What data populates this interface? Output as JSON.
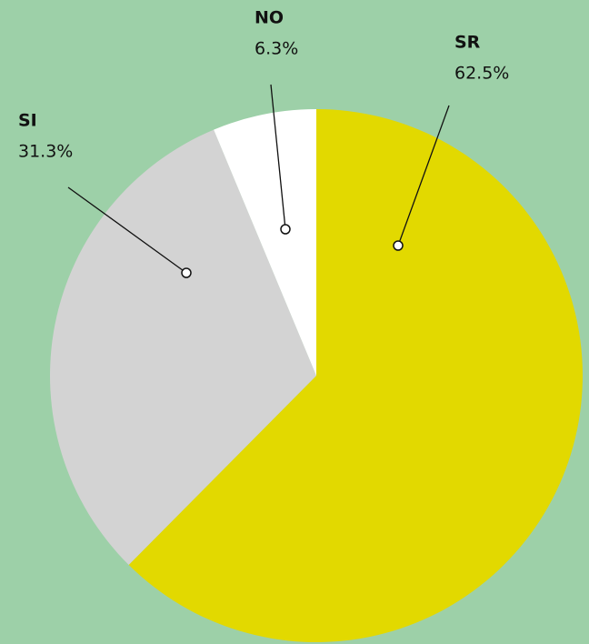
{
  "chart_data": {
    "type": "pie",
    "categories": [
      "SR",
      "SI",
      "NO"
    ],
    "values": [
      62.5,
      31.3,
      6.3
    ],
    "value_labels": [
      "62.5%",
      "31.3%",
      "6.3%"
    ],
    "colors": [
      "#e2d900",
      "#d3d3d3",
      "#ffffff"
    ]
  }
}
